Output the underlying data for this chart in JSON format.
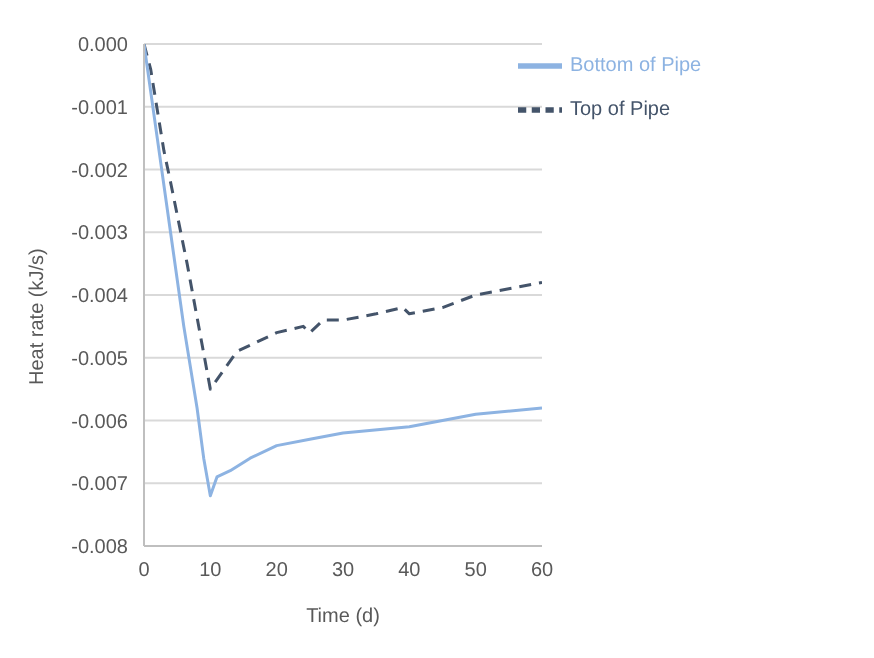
{
  "chart_data": {
    "type": "line",
    "xlabel": "Time (d)",
    "ylabel": "Heat rate (kJ/s)",
    "xlim": [
      0,
      60
    ],
    "xticks": [
      0,
      10,
      20,
      30,
      40,
      50,
      60
    ],
    "ylim": [
      -0.008,
      0
    ],
    "yticks": [
      {
        "value": -0.008,
        "label": "-0.008"
      },
      {
        "value": -0.007,
        "label": "-0.007"
      },
      {
        "value": -0.006,
        "label": "-0.006"
      },
      {
        "value": -0.005,
        "label": "-0.005"
      },
      {
        "value": -0.004,
        "label": "-0.004"
      },
      {
        "value": -0.003,
        "label": "-0.003"
      },
      {
        "value": -0.002,
        "label": "-0.002"
      },
      {
        "value": -0.001,
        "label": "-0.001"
      },
      {
        "value": 0,
        "label": "0.000"
      }
    ],
    "grid": "y",
    "legend": "top right",
    "marker": "none",
    "series": [
      {
        "name": "Top of Pipe",
        "color": "#44546a",
        "line_style": "dashed",
        "x": [
          0,
          1,
          3,
          4,
          6.5,
          10,
          12,
          14,
          16,
          20,
          24,
          25,
          27,
          30,
          35,
          39,
          40,
          45,
          50,
          55,
          60
        ],
        "values": [
          0,
          -0.0004,
          -0.0017,
          -0.0022,
          -0.0035,
          -0.0055,
          -0.0052,
          -0.0049,
          -0.0048,
          -0.0046,
          -0.0045,
          -0.0046,
          -0.0044,
          -0.0044,
          -0.0043,
          -0.0042,
          -0.0043,
          -0.0042,
          -0.004,
          -0.0039,
          -0.0038
        ]
      },
      {
        "name": "Bottom of Pipe",
        "color": "#8db3e2",
        "line_style": "solid",
        "x": [
          0,
          2,
          4,
          6,
          8,
          9,
          10,
          11,
          13,
          16,
          20,
          25,
          30,
          40,
          50,
          60
        ],
        "values": [
          0,
          -0.0015,
          -0.003,
          -0.0045,
          -0.0058,
          -0.0066,
          -0.0072,
          -0.0069,
          -0.0068,
          -0.0066,
          -0.0064,
          -0.0063,
          -0.0062,
          -0.0061,
          -0.0059,
          -0.0058
        ]
      }
    ]
  }
}
